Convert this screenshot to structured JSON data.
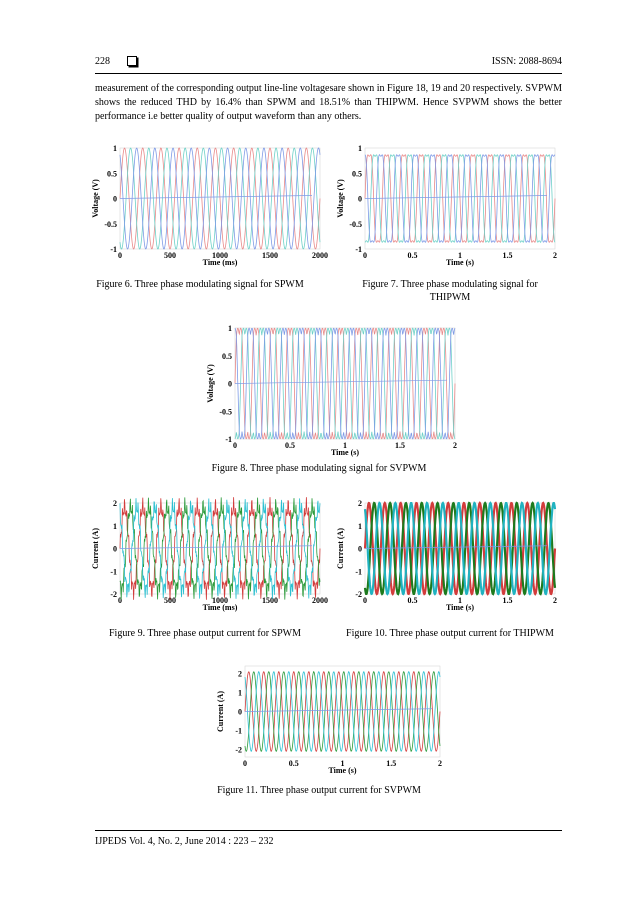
{
  "header": {
    "page_number": "228",
    "issn": "ISSN: 2088-8694"
  },
  "body_text": "measurement of the corresponding output line-line voltagesare shown in Figure 18, 19 and 20 respectively. SVPWM shows the reduced THD by 16.4% than SPWM and 18.51% than THIPWM. Hence SVPWM shows the better performance i.e better quality of output waveform than any others.",
  "captions": {
    "fig6": "Figure 6. Three phase modulating signal for SPWM",
    "fig7": "Figure 7. Three phase modulating signal for THIPWM",
    "fig8": "Figure 8. Three phase modulating signal for SVPWM",
    "fig9": "Figure 9. Three phase output current for SPWM",
    "fig10": "Figure 10. Three phase output current for THIPWM",
    "fig11": "Figure 11. Three phase output current for SVPWM"
  },
  "footer": "IJPEDS  Vol. 4, No. 2, June 2014 :  223 – 232",
  "chart_data": [
    {
      "id": "fig6",
      "type": "line",
      "wave": "sine",
      "amplitude": 1,
      "cycles": 11,
      "xlabel": "Time (ms)",
      "ylabel": "Voltage (V)",
      "xticks": [
        "0",
        "500",
        "1000",
        "1500",
        "2000"
      ],
      "xrange": [
        0,
        2000
      ],
      "yticks": [
        "1",
        "0.5",
        "0",
        "-0.5",
        "-1"
      ],
      "yrange": [
        -1,
        1
      ],
      "colors": [
        "#e88a8a",
        "#6fd1c8",
        "#7f9be6"
      ]
    },
    {
      "id": "fig7",
      "type": "line",
      "wave": "thipwm",
      "amplitude": 0.87,
      "cycles": 11,
      "xlabel": "Time (s)",
      "ylabel": "Voltage (V)",
      "xticks": [
        "0",
        "0.5",
        "1",
        "1.5",
        "2"
      ],
      "xrange": [
        0,
        2
      ],
      "yticks": [
        "1",
        "0.5",
        "0",
        "-0.5",
        "-1"
      ],
      "yrange": [
        -1,
        1
      ],
      "colors": [
        "#e88a8a",
        "#6fd1c8",
        "#7f9be6"
      ]
    },
    {
      "id": "fig8",
      "type": "line",
      "wave": "svpwm",
      "amplitude": 1,
      "cycles": 13,
      "xlabel": "Time (s)",
      "ylabel": "Voltage (V)",
      "xticks": [
        "0",
        "0.5",
        "1",
        "1.5",
        "2"
      ],
      "xrange": [
        0,
        2
      ],
      "yticks": [
        "1",
        "0.5",
        "0",
        "-0.5",
        "-1"
      ],
      "yrange": [
        -1,
        1
      ],
      "colors": [
        "#e88a8a",
        "#6fd1c8",
        "#7f9be6"
      ]
    },
    {
      "id": "fig9",
      "type": "line",
      "wave": "noisy",
      "amplitude": 1.8,
      "cycles": 11,
      "xlabel": "Time (ms)",
      "ylabel": "Current (A)",
      "xticks": [
        "0",
        "500",
        "1000",
        "1500",
        "2000"
      ],
      "xrange": [
        0,
        2000
      ],
      "yticks": [
        "2",
        "1",
        "0",
        "-1",
        "-2"
      ],
      "yrange": [
        -2,
        2
      ],
      "colors": [
        "#d23c3c",
        "#2a9a3a",
        "#2bbfd0"
      ]
    },
    {
      "id": "fig10",
      "type": "line",
      "wave": "thick",
      "amplitude": 2,
      "cycles": 12,
      "xlabel": "Time (s)",
      "ylabel": "Current (A)",
      "xticks": [
        "0",
        "0.5",
        "1",
        "1.5",
        "2"
      ],
      "xrange": [
        0,
        2
      ],
      "yticks": [
        "2",
        "1",
        "0",
        "-1",
        "-2"
      ],
      "yrange": [
        -2,
        2
      ],
      "colors": [
        "#d23c3c",
        "#1d7a1d",
        "#20b2c0"
      ]
    },
    {
      "id": "fig11",
      "type": "line",
      "wave": "sine",
      "amplitude": 2.1,
      "cycles": 13,
      "xlabel": "Time (s)",
      "ylabel": "Current (A)",
      "xticks": [
        "0",
        "0.5",
        "1",
        "1.5",
        "2"
      ],
      "xrange": [
        0,
        2
      ],
      "yticks": [
        "2",
        "1",
        "0",
        "-1",
        "-2"
      ],
      "yrange": [
        -2.4,
        2.4
      ],
      "colors": [
        "#d23c3c",
        "#2a9a3a",
        "#2bbfd0"
      ]
    }
  ]
}
